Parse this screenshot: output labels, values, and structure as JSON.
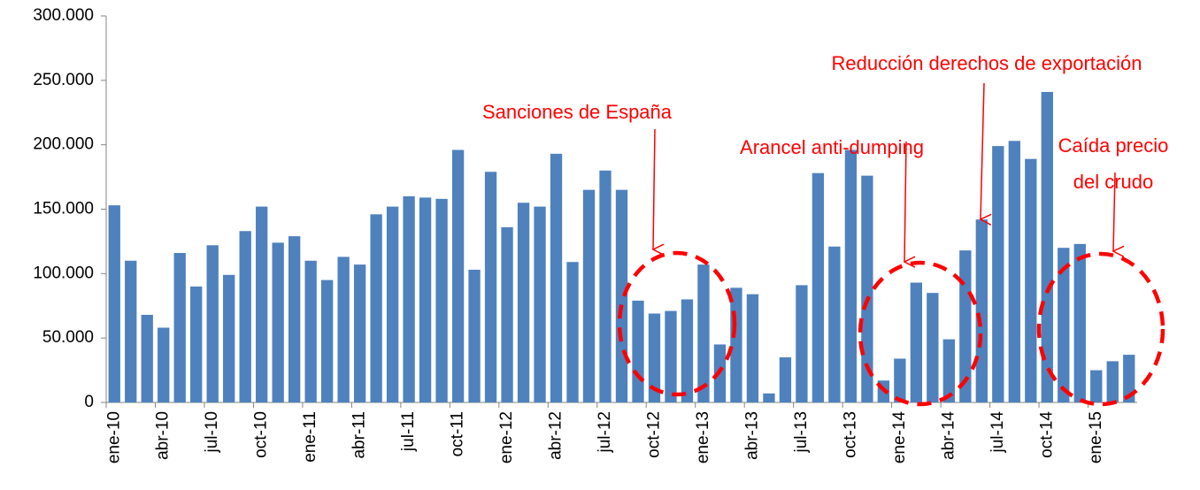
{
  "chart_data": {
    "type": "bar",
    "categories": [
      "ene-10",
      null,
      null,
      "abr-10",
      null,
      null,
      "jul-10",
      null,
      null,
      "oct-10",
      null,
      null,
      "ene-11",
      null,
      null,
      "abr-11",
      null,
      null,
      "jul-11",
      null,
      null,
      "oct-11",
      null,
      null,
      "ene-12",
      null,
      null,
      "abr-12",
      null,
      null,
      "jul-12",
      null,
      null,
      "oct-12",
      null,
      null,
      "ene-13",
      null,
      null,
      "abr-13",
      null,
      null,
      "jul-13",
      null,
      null,
      "oct-13",
      null,
      null,
      "ene-14",
      null,
      null,
      "abr-14",
      null,
      null,
      "jul-14",
      null,
      null,
      "oct-14",
      null,
      null,
      "ene-15",
      null,
      null
    ],
    "values": [
      153000,
      110000,
      68000,
      58000,
      116000,
      90000,
      122000,
      99000,
      133000,
      152000,
      124000,
      129000,
      110000,
      95000,
      113000,
      107000,
      146000,
      152000,
      160000,
      159000,
      158000,
      196000,
      103000,
      179000,
      136000,
      155000,
      152000,
      193000,
      109000,
      165000,
      180000,
      165000,
      79000,
      69000,
      71000,
      80000,
      107000,
      45000,
      89000,
      84000,
      7000,
      35000,
      91000,
      178000,
      121000,
      196000,
      176000,
      17000,
      34000,
      93000,
      85000,
      49000,
      118000,
      142000,
      199000,
      203000,
      189000,
      241000,
      120000,
      123000,
      25000,
      32000,
      37000
    ],
    "color": "#4f81bd",
    "ylim": [
      0,
      300000
    ],
    "yticks": [
      0,
      {
        "value": 50000,
        "label": "50.000"
      },
      {
        "value": 100000,
        "label": "100.000"
      },
      {
        "value": 150000,
        "label": "150.000"
      },
      {
        "value": 200000,
        "label": "200.000"
      },
      {
        "value": 250000,
        "label": "250.000"
      },
      {
        "value": 300000,
        "label": "300.000"
      }
    ],
    "grid": false,
    "annotations": [
      [
        "Sanciones de España"
      ],
      [
        "Arancel anti-dumping"
      ],
      [
        "Reducción derechos de exportación"
      ],
      [
        "Caída precio",
        "del crudo"
      ]
    ],
    "annotation_color": "#ff0000"
  }
}
